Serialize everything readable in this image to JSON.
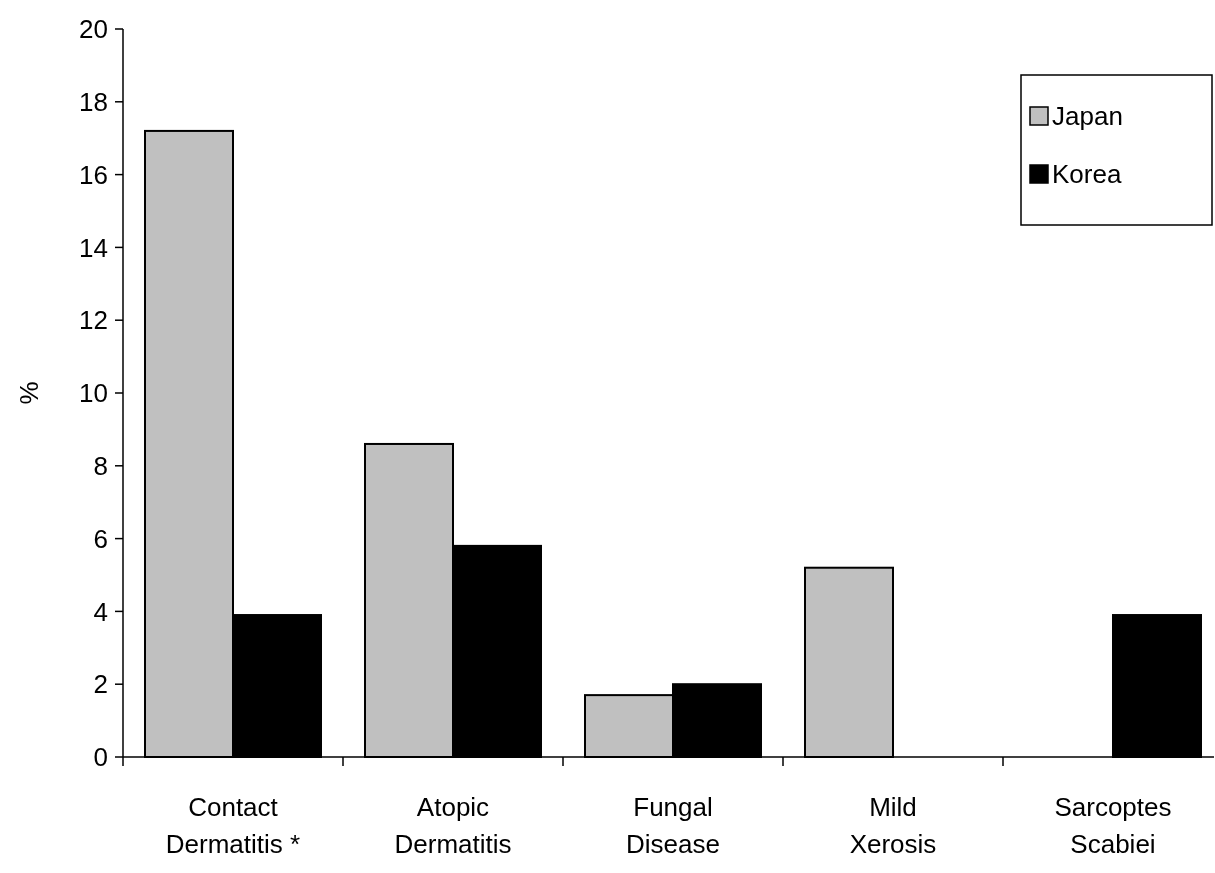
{
  "chart_data": {
    "type": "bar",
    "ylabel": "%",
    "categories": [
      "Contact Dermatitis *",
      "Atopic Dermatitis",
      "Fungal Disease",
      "Mild Xerosis",
      "Sarcoptes Scabiei"
    ],
    "series": [
      {
        "name": "Japan",
        "color": "#c0c0c0",
        "values": [
          17.2,
          8.6,
          1.7,
          5.2,
          0
        ]
      },
      {
        "name": "Korea",
        "color": "#000000",
        "values": [
          3.9,
          5.8,
          2.0,
          0,
          3.9
        ]
      }
    ],
    "ylim": [
      0,
      20
    ],
    "yticks": [
      0,
      2,
      4,
      6,
      8,
      10,
      12,
      14,
      16,
      18,
      20
    ],
    "legend": "top right",
    "grid": false
  }
}
